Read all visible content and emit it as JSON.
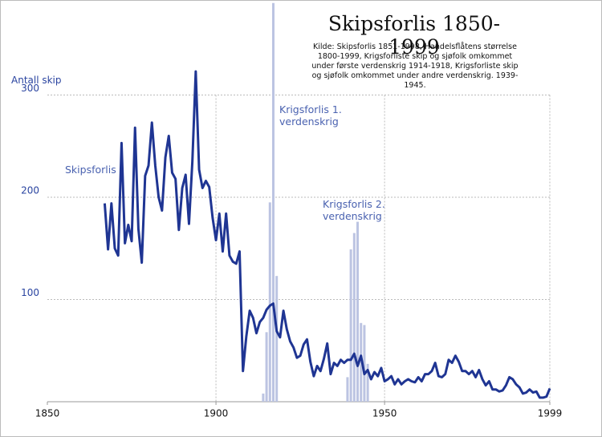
{
  "chart_data": {
    "type": "line",
    "title": "Skipsforlis 1850-1999",
    "subtitle": "Kilde: Skipsforlis 1851-1998, Handelsflåtens størrelse 1800-1999, Krigsforliste skip og sjøfolk omkommet under første verdenskrig 1914-1918, Krigsforliste skip og sjøfolk omkommet under andre verdenskrig. 1939-1945.",
    "ylabel": "Antall skip",
    "xlim": [
      1850,
      1999
    ],
    "ylim": [
      0,
      390
    ],
    "xticks": [
      1850,
      1900,
      1950,
      1999
    ],
    "yticks": [
      100,
      200,
      300
    ],
    "grid": true,
    "series": [
      {
        "name": "Skipsforlis",
        "type": "line",
        "color": "#1f3593",
        "x": [
          1867,
          1868,
          1869,
          1870,
          1871,
          1872,
          1873,
          1874,
          1875,
          1876,
          1877,
          1878,
          1879,
          1880,
          1881,
          1882,
          1883,
          1884,
          1885,
          1886,
          1887,
          1888,
          1889,
          1890,
          1891,
          1892,
          1893,
          1894,
          1895,
          1896,
          1897,
          1898,
          1899,
          1900,
          1901,
          1902,
          1903,
          1904,
          1905,
          1906,
          1907,
          1908,
          1909,
          1910,
          1911,
          1912,
          1913,
          1914,
          1915,
          1916,
          1917,
          1918,
          1919,
          1920,
          1921,
          1922,
          1923,
          1924,
          1925,
          1926,
          1927,
          1928,
          1929,
          1930,
          1931,
          1932,
          1933,
          1934,
          1935,
          1936,
          1937,
          1938,
          1939,
          1940,
          1941,
          1942,
          1943,
          1944,
          1945,
          1946,
          1947,
          1948,
          1949,
          1950,
          1951,
          1952,
          1953,
          1954,
          1955,
          1956,
          1957,
          1958,
          1959,
          1960,
          1961,
          1962,
          1963,
          1964,
          1965,
          1966,
          1967,
          1968,
          1969,
          1970,
          1971,
          1972,
          1973,
          1974,
          1975,
          1976,
          1977,
          1978,
          1979,
          1980,
          1981,
          1982,
          1983,
          1984,
          1985,
          1986,
          1987,
          1988,
          1989,
          1990,
          1991,
          1992,
          1993,
          1994,
          1995,
          1996,
          1997,
          1998,
          1999
        ],
        "values": [
          194,
          149,
          194,
          150,
          143,
          253,
          155,
          173,
          157,
          268,
          169,
          136,
          221,
          231,
          273,
          231,
          200,
          187,
          239,
          260,
          224,
          218,
          168,
          209,
          222,
          174,
          235,
          323,
          227,
          209,
          216,
          210,
          180,
          158,
          184,
          147,
          184,
          143,
          137,
          135,
          147,
          30,
          64,
          89,
          82,
          67,
          78,
          82,
          90,
          94,
          96,
          69,
          63,
          89,
          71,
          59,
          53,
          43,
          45,
          56,
          61,
          39,
          25,
          35,
          30,
          42,
          57,
          27,
          38,
          35,
          41,
          38,
          41,
          41,
          47,
          35,
          45,
          27,
          31,
          22,
          29,
          25,
          33,
          20,
          22,
          25,
          17,
          22,
          17,
          20,
          22,
          20,
          19,
          24,
          20,
          27,
          27,
          30,
          38,
          25,
          24,
          27,
          41,
          38,
          45,
          39,
          30,
          30,
          27,
          30,
          24,
          31,
          22,
          16,
          20,
          12,
          12,
          10,
          11,
          16,
          24,
          22,
          17,
          14,
          8,
          9,
          12,
          9,
          10,
          4,
          4,
          5,
          13
        ]
      },
      {
        "name": "Krigsforlis 1. verdenskrig",
        "type": "bar",
        "color": "#bcc4e2",
        "x": [
          1914,
          1915,
          1916,
          1917,
          1918
        ],
        "values": [
          8,
          68,
          195,
          390,
          123
        ]
      },
      {
        "name": "Krigsforlis 2. verdenskrig",
        "type": "bar",
        "color": "#bcc4e2",
        "x": [
          1939,
          1940,
          1941,
          1942,
          1943,
          1944,
          1945
        ],
        "values": [
          24,
          149,
          165,
          176,
          77,
          75,
          37
        ]
      }
    ]
  }
}
